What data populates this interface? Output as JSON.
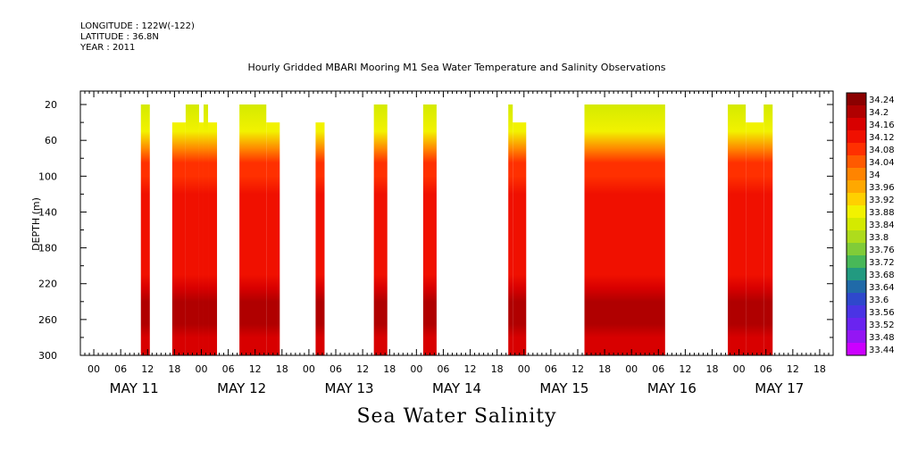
{
  "header": {
    "longitude": "LONGITUDE : 122W(-122)",
    "latitude": "LATITUDE : 36.8N",
    "year": "YEAR : 2011"
  },
  "chart_data": {
    "type": "heatmap",
    "title": "Hourly Gridded MBARI Mooring M1 Sea Water Temperature and Salinity Observations",
    "subtitle": "Sea Water Salinity",
    "ylabel": "DEPTH (m)",
    "xlabel": "",
    "x_hour_ticks": [
      "00",
      "06",
      "12",
      "18",
      "00",
      "06",
      "12",
      "18",
      "00",
      "06",
      "12",
      "18",
      "00",
      "06",
      "12",
      "18",
      "00",
      "06",
      "12",
      "18",
      "00",
      "06",
      "12",
      "18",
      "00",
      "06",
      "12",
      "18"
    ],
    "x_day_labels": [
      "MAY 11",
      "MAY 12",
      "MAY 13",
      "MAY 14",
      "MAY 15",
      "MAY 16",
      "MAY 17"
    ],
    "x_range_hours": [
      -3,
      165
    ],
    "y_ticks": [
      20,
      60,
      100,
      140,
      180,
      220,
      260,
      300
    ],
    "ylim": [
      300,
      5
    ],
    "y_reversed": true,
    "colorbar_levels": [
      "34.24",
      "34.2",
      "34.16",
      "34.12",
      "34.08",
      "34.04",
      "34",
      "33.96",
      "33.92",
      "33.88",
      "33.84",
      "33.8",
      "33.76",
      "33.72",
      "33.68",
      "33.64",
      "33.6",
      "33.56",
      "33.52",
      "33.48",
      "33.44"
    ],
    "colorbar_colors": [
      "#8b0000",
      "#b00000",
      "#d80000",
      "#f01000",
      "#ff3000",
      "#ff5a00",
      "#ff8400",
      "#ffa800",
      "#ffd000",
      "#f2f200",
      "#d4ea00",
      "#aedc1c",
      "#80cc38",
      "#48b858",
      "#229a80",
      "#206aa8",
      "#2e48cc",
      "#4a34e4",
      "#6a24f0",
      "#9416f4",
      "#cc00ff"
    ],
    "data_segments": [
      {
        "start_hour": 10.5,
        "end_hour": 12.5,
        "top_depth": 20
      },
      {
        "start_hour": 17.5,
        "end_hour": 20.5,
        "top_depth": 40
      },
      {
        "start_hour": 20.5,
        "end_hour": 23.5,
        "top_depth": 20
      },
      {
        "start_hour": 23.5,
        "end_hour": 24.5,
        "top_depth": 40
      },
      {
        "start_hour": 24.5,
        "end_hour": 25.5,
        "top_depth": 20
      },
      {
        "start_hour": 25.5,
        "end_hour": 27.5,
        "top_depth": 40
      },
      {
        "start_hour": 32.5,
        "end_hour": 38.5,
        "top_depth": 20
      },
      {
        "start_hour": 38.5,
        "end_hour": 41.5,
        "top_depth": 40
      },
      {
        "start_hour": 49.5,
        "end_hour": 51.5,
        "top_depth": 40
      },
      {
        "start_hour": 62.5,
        "end_hour": 65.5,
        "top_depth": 20
      },
      {
        "start_hour": 73.5,
        "end_hour": 76.5,
        "top_depth": 20
      },
      {
        "start_hour": 92.5,
        "end_hour": 93.5,
        "top_depth": 20
      },
      {
        "start_hour": 93.5,
        "end_hour": 96.5,
        "top_depth": 40
      },
      {
        "start_hour": 109.5,
        "end_hour": 127.5,
        "top_depth": 20
      },
      {
        "start_hour": 141.5,
        "end_hour": 145.5,
        "top_depth": 20
      },
      {
        "start_hour": 145.5,
        "end_hour": 149.5,
        "top_depth": 40
      },
      {
        "start_hour": 149.5,
        "end_hour": 151.5,
        "top_depth": 20
      }
    ],
    "depth_profile": [
      {
        "depth": 20,
        "value": 33.86
      },
      {
        "depth": 50,
        "value": 33.9
      },
      {
        "depth": 70,
        "value": 34.0
      },
      {
        "depth": 85,
        "value": 34.06
      },
      {
        "depth": 100,
        "value": 34.08
      },
      {
        "depth": 120,
        "value": 34.1
      },
      {
        "depth": 150,
        "value": 34.12
      },
      {
        "depth": 180,
        "value": 34.11
      },
      {
        "depth": 210,
        "value": 34.13
      },
      {
        "depth": 225,
        "value": 34.17
      },
      {
        "depth": 240,
        "value": 34.2
      },
      {
        "depth": 250,
        "value": 34.22
      },
      {
        "depth": 265,
        "value": 34.2
      },
      {
        "depth": 280,
        "value": 34.16
      },
      {
        "depth": 300,
        "value": 34.14
      }
    ]
  }
}
